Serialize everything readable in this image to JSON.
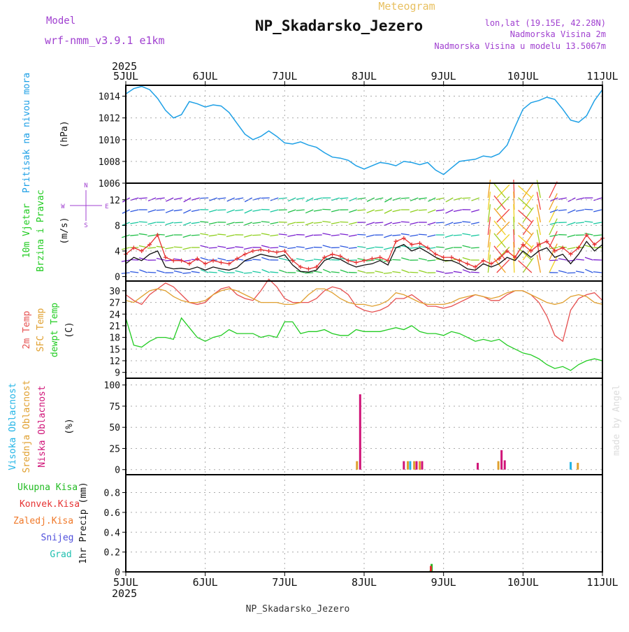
{
  "header": {
    "model_label": "Model",
    "model_name": "wrf-nmm_v3.9.1 e1km",
    "chart_kind": "Meteogram",
    "station": "NP_Skadarsko_Jezero",
    "coords": "lon,lat (19.15E, 42.28N)",
    "altitude": "Nadmorska Visina 2m",
    "model_altitude": "Nadmorska Visina u modelu 13.5067m",
    "year": "2025",
    "footer_station": "NP_Skadarsko_Jezero",
    "credit": "made by Angel"
  },
  "colors": {
    "pressure": "#1ea0e6",
    "wind_speed": "#111111",
    "gust": "#e63232",
    "temp2m": "#e65050",
    "sfc_temp": "#e0a030",
    "dewpoint": "#22cc22",
    "high_cloud": "#22b4e6",
    "mid_cloud": "#e0a030",
    "low_cloud": "#d01478",
    "total_rain": "#22bb22",
    "conv_rain": "#e63232",
    "freezing_rain": "#f07828",
    "snow": "#5050dc",
    "hail": "#20c0b0",
    "title": "#111111",
    "purple": "#a040d0"
  },
  "chart_data": [
    {
      "panel": "pressure",
      "type": "line",
      "ylabel": [
        "Pritisak na nivou mora",
        "(hPa)"
      ],
      "yticks": [
        1006,
        1008,
        1010,
        1012,
        1014
      ],
      "ylim": [
        1006,
        1015
      ],
      "x_unit": "days since 5JUL 00UTC",
      "xticks": [
        "5JUL",
        "6JUL",
        "7JUL",
        "8JUL",
        "9JUL",
        "10JUL",
        "11JUL"
      ],
      "grid": true,
      "series": [
        {
          "name": "pressure",
          "x": [
            0,
            0.1,
            0.2,
            0.3,
            0.4,
            0.5,
            0.6,
            0.7,
            0.8,
            0.9,
            1.0,
            1.1,
            1.2,
            1.3,
            1.4,
            1.5,
            1.6,
            1.7,
            1.8,
            1.9,
            2.0,
            2.1,
            2.2,
            2.3,
            2.4,
            2.5,
            2.6,
            2.7,
            2.8,
            2.9,
            3.0,
            3.1,
            3.2,
            3.3,
            3.4,
            3.5,
            3.6,
            3.7,
            3.8,
            3.9,
            4.0,
            4.1,
            4.2,
            4.3,
            4.4,
            4.5,
            4.6,
            4.7,
            4.8,
            4.9,
            5.0,
            5.1,
            5.2,
            5.3,
            5.4,
            5.5,
            5.6,
            5.7,
            5.8,
            5.9,
            6.0
          ],
          "values": [
            1014.2,
            1014.7,
            1014.9,
            1014.6,
            1013.8,
            1012.7,
            1012.0,
            1012.3,
            1013.5,
            1013.3,
            1013.0,
            1013.2,
            1013.1,
            1012.5,
            1011.5,
            1010.5,
            1010.0,
            1010.3,
            1010.8,
            1010.3,
            1009.7,
            1009.6,
            1009.8,
            1009.5,
            1009.3,
            1008.8,
            1008.4,
            1008.3,
            1008.1,
            1007.6,
            1007.3,
            1007.6,
            1007.9,
            1007.8,
            1007.6,
            1008.0,
            1007.9,
            1007.7,
            1007.9,
            1007.2,
            1006.8,
            1007.4,
            1008.0,
            1008.1,
            1008.2,
            1008.5,
            1008.4,
            1008.7,
            1009.5,
            1011.2,
            1012.8,
            1013.4,
            1013.6,
            1013.9,
            1013.7,
            1012.8,
            1011.8,
            1011.6,
            1012.2,
            1013.6,
            1014.6
          ]
        }
      ]
    },
    {
      "panel": "wind",
      "type": "line",
      "ylabel": [
        "10m Vjetar",
        "Brzina i Pravac",
        "(m/s)"
      ],
      "compass": [
        "N",
        "E",
        "S",
        "W"
      ],
      "yticks": [
        0,
        4,
        8,
        12
      ],
      "ylim": [
        -0.7,
        14.6
      ],
      "grid": true,
      "series": [
        {
          "name": "speed",
          "x": [
            0,
            0.1,
            0.2,
            0.3,
            0.4,
            0.5,
            0.6,
            0.7,
            0.8,
            0.9,
            1.0,
            1.1,
            1.2,
            1.3,
            1.4,
            1.5,
            1.6,
            1.7,
            1.8,
            1.9,
            2.0,
            2.1,
            2.2,
            2.3,
            2.4,
            2.5,
            2.6,
            2.7,
            2.8,
            2.9,
            3.0,
            3.1,
            3.2,
            3.3,
            3.4,
            3.5,
            3.6,
            3.7,
            3.8,
            3.9,
            4.0,
            4.1,
            4.2,
            4.3,
            4.4,
            4.5,
            4.6,
            4.7,
            4.8,
            4.9,
            5.0,
            5.1,
            5.2,
            5.3,
            5.4,
            5.5,
            5.6,
            5.7,
            5.8,
            5.9,
            6.0
          ],
          "values": [
            2.0,
            3.0,
            2.5,
            3.5,
            4.0,
            1.5,
            1.2,
            1.3,
            1.1,
            1.5,
            1.0,
            1.5,
            1.2,
            1.0,
            1.4,
            2.5,
            3.0,
            3.5,
            3.2,
            3.0,
            3.4,
            1.8,
            0.8,
            0.7,
            1.0,
            2.5,
            3.0,
            2.7,
            2.0,
            1.5,
            1.8,
            2.0,
            2.5,
            1.8,
            4.5,
            5.0,
            4.0,
            4.5,
            3.8,
            3.0,
            2.5,
            2.5,
            2.0,
            1.2,
            1.0,
            2.0,
            1.5,
            2.0,
            3.0,
            2.5,
            4.0,
            3.0,
            4.0,
            4.5,
            3.0,
            3.5,
            2.0,
            3.5,
            5.5,
            4.0,
            5.0
          ]
        },
        {
          "name": "gust",
          "x": [
            0,
            0.1,
            0.2,
            0.3,
            0.4,
            0.5,
            0.6,
            0.7,
            0.8,
            0.9,
            1.0,
            1.1,
            1.2,
            1.3,
            1.4,
            1.5,
            1.6,
            1.7,
            1.8,
            1.9,
            2.0,
            2.1,
            2.2,
            2.3,
            2.4,
            2.5,
            2.6,
            2.7,
            2.8,
            2.9,
            3.0,
            3.1,
            3.2,
            3.3,
            3.4,
            3.5,
            3.6,
            3.7,
            3.8,
            3.9,
            4.0,
            4.1,
            4.2,
            4.3,
            4.4,
            4.5,
            4.6,
            4.7,
            4.8,
            4.9,
            5.0,
            5.1,
            5.2,
            5.3,
            5.4,
            5.5,
            5.6,
            5.7,
            5.8,
            5.9,
            6.0
          ],
          "values": [
            3.5,
            4.5,
            4.0,
            5.0,
            6.5,
            3.0,
            2.5,
            2.5,
            2.0,
            2.8,
            2.0,
            2.5,
            2.2,
            2.0,
            2.8,
            3.5,
            4.0,
            4.2,
            4.0,
            3.8,
            4.0,
            2.5,
            1.5,
            1.2,
            1.5,
            3.0,
            3.5,
            3.2,
            2.5,
            2.2,
            2.5,
            2.8,
            3.0,
            2.5,
            5.5,
            6.0,
            5.0,
            5.2,
            4.5,
            3.5,
            3.0,
            3.0,
            2.5,
            2.0,
            1.5,
            2.5,
            2.0,
            2.8,
            4.0,
            3.0,
            5.0,
            4.0,
            5.0,
            5.5,
            4.0,
            4.5,
            3.5,
            4.5,
            6.5,
            5.0,
            6.0
          ]
        }
      ]
    },
    {
      "panel": "temperature",
      "type": "line",
      "ylabel": [
        "2m Temp",
        "SFC Temp",
        "dewpt Temp",
        "(C)"
      ],
      "yticks": [
        9,
        12,
        15,
        18,
        21,
        24,
        27,
        30
      ],
      "ylim": [
        7.5,
        32.5
      ],
      "grid": true,
      "series": [
        {
          "name": "2m Temp",
          "x": [
            0,
            0.1,
            0.2,
            0.3,
            0.4,
            0.5,
            0.6,
            0.7,
            0.8,
            0.9,
            1.0,
            1.1,
            1.2,
            1.3,
            1.4,
            1.5,
            1.6,
            1.7,
            1.8,
            1.9,
            2.0,
            2.1,
            2.2,
            2.3,
            2.4,
            2.5,
            2.6,
            2.7,
            2.8,
            2.9,
            3.0,
            3.1,
            3.2,
            3.3,
            3.4,
            3.5,
            3.6,
            3.7,
            3.8,
            3.9,
            4.0,
            4.1,
            4.2,
            4.3,
            4.4,
            4.5,
            4.6,
            4.7,
            4.8,
            4.9,
            5.0,
            5.1,
            5.2,
            5.3,
            5.4,
            5.5,
            5.6,
            5.7,
            5.8,
            5.9,
            6.0
          ],
          "values": [
            29,
            27.5,
            26.5,
            29,
            30.5,
            32,
            31,
            29,
            27,
            26.5,
            27,
            29,
            30.5,
            31,
            29,
            28,
            27.5,
            30,
            33,
            31,
            28,
            27,
            27,
            27,
            28,
            30,
            31,
            30.5,
            29,
            26,
            25,
            24.5,
            25,
            26,
            28,
            28,
            29,
            27.5,
            26,
            26,
            25.5,
            26,
            27,
            28,
            29,
            28.5,
            27.5,
            27.5,
            29,
            30,
            30,
            29,
            27,
            23.5,
            18.5,
            17,
            25,
            28,
            29,
            29.5,
            27.5
          ]
        },
        {
          "name": "SFC Temp",
          "x": [
            0,
            0.1,
            0.2,
            0.3,
            0.4,
            0.5,
            0.6,
            0.7,
            0.8,
            0.9,
            1.0,
            1.1,
            1.2,
            1.3,
            1.4,
            1.5,
            1.6,
            1.7,
            1.8,
            1.9,
            2.0,
            2.1,
            2.2,
            2.3,
            2.4,
            2.5,
            2.6,
            2.7,
            2.8,
            2.9,
            3.0,
            3.1,
            3.2,
            3.3,
            3.4,
            3.5,
            3.6,
            3.7,
            3.8,
            3.9,
            4.0,
            4.1,
            4.2,
            4.3,
            4.4,
            4.5,
            4.6,
            4.7,
            4.8,
            4.9,
            5.0,
            5.1,
            5.2,
            5.3,
            5.4,
            5.5,
            5.6,
            5.7,
            5.8,
            5.9,
            6.0
          ],
          "values": [
            27.5,
            27,
            28.5,
            30,
            30.5,
            30,
            28.5,
            27.5,
            27,
            27,
            27.5,
            29,
            30,
            30.5,
            30,
            29,
            28,
            27,
            27,
            27,
            26.5,
            26.5,
            27,
            29,
            30.5,
            30.5,
            29.5,
            28,
            27,
            26.5,
            26.5,
            26,
            26.5,
            27.5,
            29.5,
            29,
            28,
            27,
            26.5,
            26.5,
            26.5,
            27,
            28,
            28.5,
            29,
            28.5,
            28,
            28.5,
            29.5,
            30,
            30,
            29,
            28,
            27,
            26.5,
            27,
            28.5,
            29,
            28.5,
            27,
            26.5
          ]
        },
        {
          "name": "dewpt Temp",
          "x": [
            0,
            0.1,
            0.2,
            0.3,
            0.4,
            0.5,
            0.6,
            0.7,
            0.8,
            0.9,
            1.0,
            1.1,
            1.2,
            1.3,
            1.4,
            1.5,
            1.6,
            1.7,
            1.8,
            1.9,
            2.0,
            2.1,
            2.2,
            2.3,
            2.4,
            2.5,
            2.6,
            2.7,
            2.8,
            2.9,
            3.0,
            3.1,
            3.2,
            3.3,
            3.4,
            3.5,
            3.6,
            3.7,
            3.8,
            3.9,
            4.0,
            4.1,
            4.2,
            4.3,
            4.4,
            4.5,
            4.6,
            4.7,
            4.8,
            4.9,
            5.0,
            5.1,
            5.2,
            5.3,
            5.4,
            5.5,
            5.6,
            5.7,
            5.8,
            5.9,
            6.0
          ],
          "values": [
            23,
            16,
            15.5,
            17,
            18,
            18,
            17.5,
            23,
            20.5,
            18,
            17,
            18,
            18.5,
            20,
            19,
            19,
            19,
            18,
            18.5,
            18,
            22,
            22,
            19,
            19.5,
            19.5,
            20,
            19,
            18.5,
            18.5,
            20,
            19.5,
            19.5,
            19.5,
            20,
            20.5,
            20,
            21,
            19.5,
            19,
            19,
            18.5,
            19.5,
            19,
            18,
            17,
            17.5,
            17,
            17.5,
            16,
            15,
            14,
            13.5,
            12.5,
            11,
            10,
            10.5,
            9.5,
            11,
            12,
            12.5,
            12
          ]
        }
      ]
    },
    {
      "panel": "clouds",
      "type": "bar",
      "ylabel": [
        "Visoka Oblacnost",
        "Srednja Oblacnost",
        "Niska Oblacnost",
        "(%)"
      ],
      "yticks": [
        0,
        25,
        50,
        75,
        100
      ],
      "ylim": [
        -6,
        108
      ],
      "grid": true,
      "series": [
        {
          "name": "Niska Oblacnost",
          "x": [
            2.95,
            3.5,
            3.66,
            3.73,
            4.43,
            4.73,
            4.77
          ],
          "values": [
            89,
            10,
            10,
            10,
            8,
            23,
            11
          ]
        },
        {
          "name": "Srednja Oblacnost",
          "x": [
            2.91,
            3.55,
            3.63,
            3.7,
            4.69,
            5.69
          ],
          "values": [
            10,
            10,
            10,
            10,
            10,
            8
          ]
        },
        {
          "name": "Visoka Oblacnost",
          "x": [
            3.58,
            5.6
          ],
          "values": [
            10,
            9
          ]
        }
      ]
    },
    {
      "panel": "precipitation",
      "type": "bar",
      "ylabel": [
        "Ukupna Kisa",
        "Konvek.Kisa",
        "Zaledj.Kisa",
        "Snijeg",
        "Grad",
        "1hr Precip (mm)"
      ],
      "yticks": [
        0,
        0.2,
        0.4,
        0.6,
        0.8
      ],
      "ylim": [
        0,
        0.98
      ],
      "grid": true,
      "series": [
        {
          "name": "Ukupna Kisa",
          "x": [
            3.83,
            3.85
          ],
          "values": [
            0.01,
            0.08
          ]
        },
        {
          "name": "Konvek.Kisa",
          "x": [
            3.84
          ],
          "values": [
            0.06
          ]
        }
      ]
    }
  ]
}
